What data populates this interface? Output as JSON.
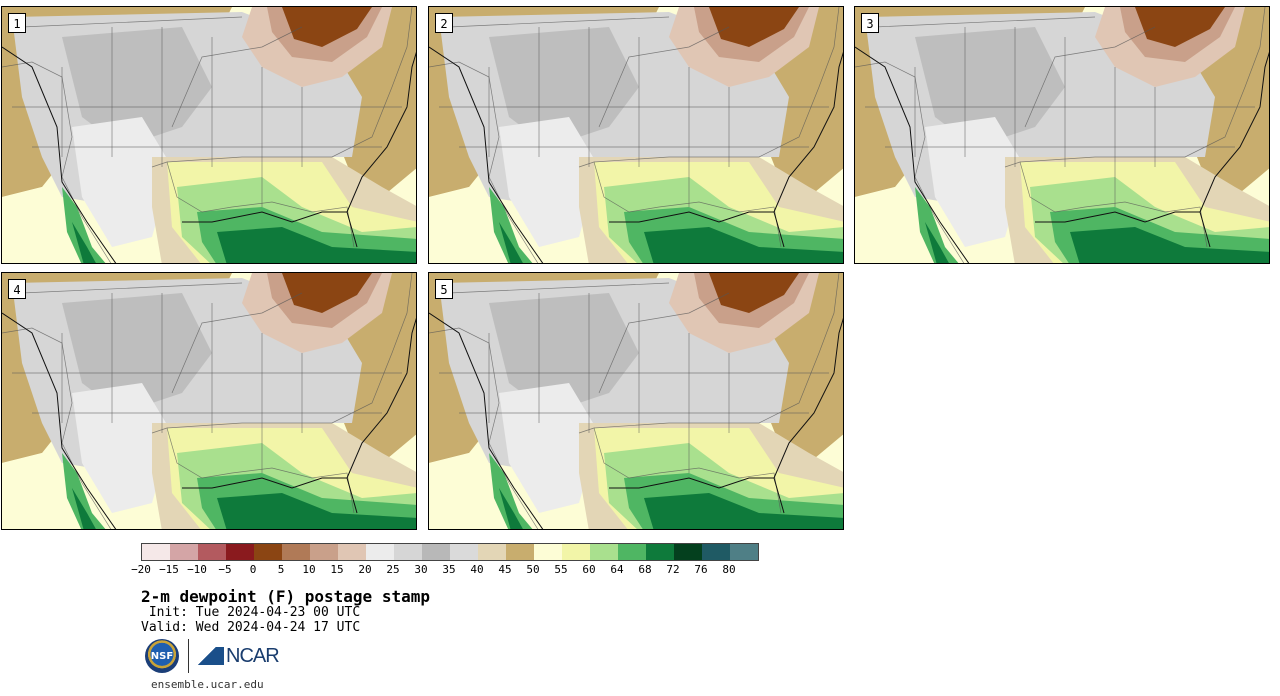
{
  "panels": [
    {
      "number": "1"
    },
    {
      "number": "2"
    },
    {
      "number": "3"
    },
    {
      "number": "4"
    },
    {
      "number": "5"
    }
  ],
  "colorbar": {
    "colors": [
      "#f5e8e8",
      "#d4a5a6",
      "#b35a5f",
      "#8a1a1e",
      "#8b4513",
      "#b07a57",
      "#c9a08a",
      "#e0c6b4",
      "#ececec",
      "#d6d6d6",
      "#b8b8b8",
      "#dadada",
      "#e3d6b6",
      "#c8ad6e",
      "#fdfdd6",
      "#f2f5a8",
      "#a9e08e",
      "#4fb663",
      "#0e7a3b",
      "#04401e",
      "#1f5a64",
      "#4f7f86"
    ],
    "ticks": [
      "−20",
      "−15",
      "−10",
      "−5",
      "0",
      "5",
      "10",
      "15",
      "20",
      "25",
      "30",
      "35",
      "40",
      "45",
      "50",
      "55",
      "60",
      "64",
      "68",
      "72",
      "76",
      "80"
    ]
  },
  "title": "2-m dewpoint (F) postage stamp",
  "init": " Init: Tue 2024-04-23 00 UTC",
  "valid": "Valid: Wed 2024-04-24 17 UTC",
  "logos": {
    "nsf": "NSF",
    "ncar": "NCAR"
  },
  "website": "ensemble.ucar.edu"
}
